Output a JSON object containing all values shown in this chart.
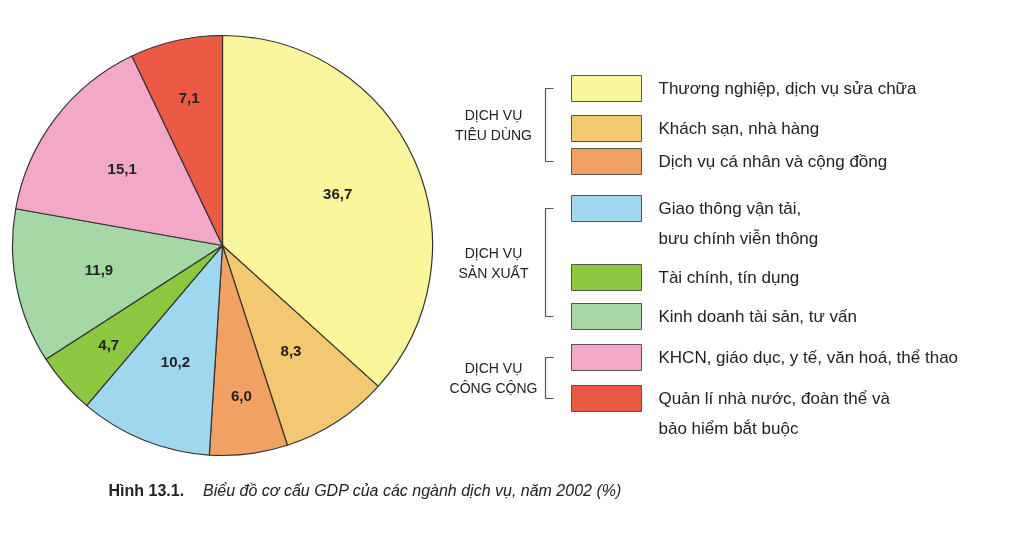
{
  "chart_data": {
    "type": "pie",
    "title": "Hình 13.1. Biểu đồ cơ cấu GDP của các ngành dịch vụ, năm 2002 (%)",
    "categories": [
      "Thương nghiệp, dịch vụ sửa chữa",
      "Khách sạn, nhà hàng",
      "Dịch vụ cá nhân và cộng đồng",
      "Giao thông vận tải,\nbưu chính viễn thông",
      "Tài chính, tín dụng",
      "Kinh doanh tài sản, tư vấn",
      "KHCN, giáo dục, y tế, văn hoá, thể thao",
      "Quản lí nhà nước, đoàn thể và\nbảo hiểm bắt buộc"
    ],
    "values": [
      36.7,
      8.3,
      6.0,
      10.2,
      4.7,
      11.9,
      15.1,
      7.1
    ],
    "colors": [
      "#fbf59c",
      "#f4c870",
      "#f1a163",
      "#9ed7ee",
      "#8dc63f",
      "#a6d8a6",
      "#f3a8c8",
      "#ec5a44"
    ],
    "value_labels": [
      "36,7",
      "8,3",
      "6,0",
      "10,2",
      "4,7",
      "11,9",
      "15,1",
      "7,1"
    ],
    "legend": "right",
    "annotations": [
      "DỊCH VỤ\nTIÊU DÙNG",
      "DỊCH VỤ\nSẢN XUẤT",
      "DỊCH VỤ\nCÔNG CỘNG"
    ]
  }
}
